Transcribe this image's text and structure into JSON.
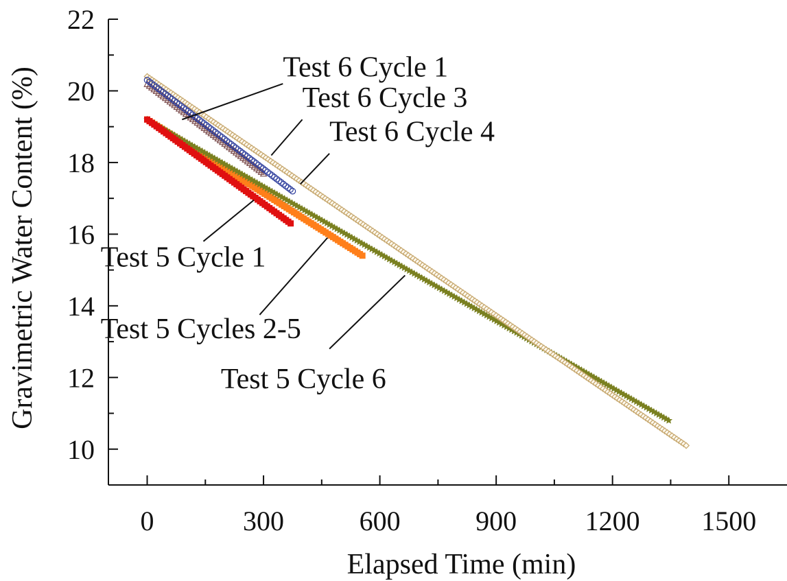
{
  "chart_data": {
    "type": "scatter",
    "xlabel": "Elapsed Time  (min)",
    "ylabel": "Gravimetric Water Content  (%)",
    "xlim": [
      -100,
      1650
    ],
    "ylim": [
      9.0,
      22.0
    ],
    "x_major_ticks": [
      0,
      300,
      600,
      900,
      1200,
      1500
    ],
    "x_minor_ticks": [
      150,
      450,
      750,
      1050,
      1350
    ],
    "y_major_ticks": [
      10,
      12,
      14,
      16,
      18,
      20,
      22
    ],
    "y_minor_ticks": [
      11,
      13,
      15,
      17,
      19,
      21
    ],
    "x_tick_labels": [
      "0",
      "300",
      "600",
      "900",
      "1200",
      "1500"
    ],
    "y_tick_labels": [
      "10",
      "12",
      "14",
      "16",
      "18",
      "20",
      "22"
    ],
    "grid": false,
    "series": [
      {
        "label": "Test 6 Cycle 1",
        "marker": "circle",
        "color": "#2a3a9a",
        "x": [
          0,
          375
        ],
        "y": [
          20.3,
          17.2
        ],
        "label_xy": [
          350,
          20.4
        ],
        "leader_from": [
          350,
          20.2
        ],
        "leader_to": [
          90,
          19.2
        ]
      },
      {
        "label": "Test 6 Cycle 3",
        "marker": "triangle",
        "color": "#7a4a4a",
        "x": [
          0,
          300
        ],
        "y": [
          20.2,
          17.7
        ],
        "label_xy": [
          400,
          19.55
        ],
        "leader_from": [
          400,
          19.2
        ],
        "leader_to": [
          320,
          18.2
        ]
      },
      {
        "label": "Test 6 Cycle 4",
        "marker": "diamond",
        "color": "#c8aa72",
        "x": [
          0,
          1390
        ],
        "y": [
          20.4,
          10.1
        ],
        "label_xy": [
          470,
          18.6
        ],
        "leader_from": [
          470,
          18.25
        ],
        "leader_to": [
          395,
          17.4
        ]
      },
      {
        "label": "Test 5 Cycle 1",
        "marker": "square",
        "color": "#e01010",
        "x": [
          0,
          370
        ],
        "y": [
          19.2,
          16.3
        ],
        "label_xy": [
          -120,
          15.1
        ],
        "leader_from": [
          145,
          15.8
        ],
        "leader_to": [
          275,
          16.95
        ]
      },
      {
        "label": "Test 5 Cycles 2-5",
        "marker": "square",
        "color": "#ff7f1a",
        "x": [
          0,
          555
        ],
        "y": [
          19.2,
          15.4
        ],
        "label_xy": [
          -120,
          13.1
        ],
        "leader_from": [
          290,
          13.75
        ],
        "leader_to": [
          465,
          15.9
        ]
      },
      {
        "label": "Test 5 Cycle 6",
        "marker": "star",
        "color": "#7a8020",
        "x": [
          0,
          1345
        ],
        "y": [
          19.2,
          10.8
        ],
        "label_xy": [
          190,
          11.7
        ],
        "leader_from": [
          470,
          12.8
        ],
        "leader_to": [
          665,
          14.85
        ]
      }
    ]
  }
}
